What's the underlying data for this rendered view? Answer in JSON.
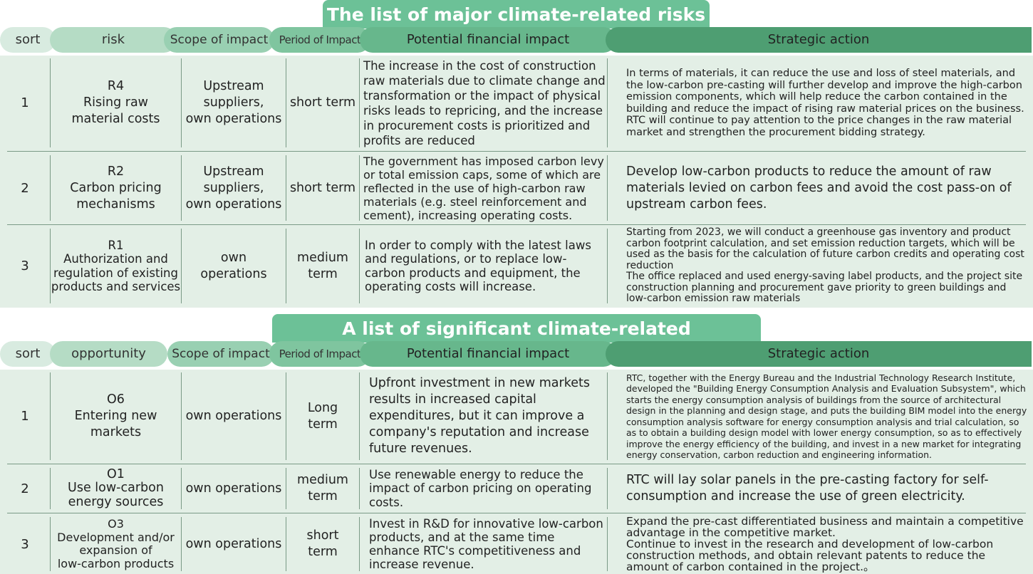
{
  "risks": {
    "title": "The list of major climate-related risks",
    "headers": {
      "sort": "sort",
      "item": "risk",
      "scope": "Scope of impact",
      "period": "Period of Impact",
      "financial": "Potential financial impact",
      "strategy": "Strategic action"
    },
    "rows": [
      {
        "sort": "1",
        "item": "R4\nRising raw\nmaterial costs",
        "scope": "Upstream\nsuppliers,\nown operations",
        "period": "short term",
        "financial": "The increase in the cost of construction raw materials due to climate change and transformation or the impact of physical risks leads to repricing, and the increase in procurement costs is prioritized and profits are reduced",
        "strategy": "In terms of materials, it can reduce the use and loss of steel materials, and the low-carbon pre-casting will further develop and improve the high-carbon emission components, which will help reduce the carbon contained in the building and reduce the impact of rising raw material prices on the business.\nRTC will continue to pay attention to the price changes in the raw material market and strengthen the procurement bidding strategy."
      },
      {
        "sort": "2",
        "item": "R2\nCarbon pricing\nmechanisms",
        "scope": "Upstream\nsuppliers,\nown operations",
        "period": "short term",
        "financial": "The government has imposed carbon levy or total emission caps, some of which are reflected in the use of high-carbon raw materials (e.g. steel reinforcement and cement), increasing operating costs.",
        "strategy": "Develop low-carbon products to reduce the amount of raw materials levied on carbon fees and avoid the cost pass-on of upstream carbon fees."
      },
      {
        "sort": "3",
        "item": "R1\nAuthorization and\nregulation of existing\nproducts and services",
        "scope": "own\noperations",
        "period": "medium\nterm",
        "financial": "In order to comply with the latest laws and regulations, or to replace low-carbon products and equipment, the operating costs will increase.",
        "strategy": "Starting from 2023, we will conduct a greenhouse gas inventory and product carbon footprint calculation, and set emission reduction targets, which will be used as the basis for the calculation of future carbon credits and operating cost reduction\nThe office replaced and used energy-saving label products, and the project site construction planning and procurement gave priority to green buildings and low-carbon emission raw materials"
      }
    ]
  },
  "opportunities": {
    "title": "A list of significant climate-related opportunities",
    "headers": {
      "sort": "sort",
      "item": "opportunity",
      "scope": "Scope of impact",
      "period": "Period of Impact",
      "financial": "Potential financial impact",
      "strategy": "Strategic action"
    },
    "rows": [
      {
        "sort": "1",
        "item": "O6\nEntering new\nmarkets",
        "scope": "own operations",
        "period": "Long\nterm",
        "financial": "Upfront investment in new markets results in increased capital expenditures, but it can improve a company's reputation and increase future revenues.",
        "strategy": "RTC, together with the Energy Bureau and the Industrial Technology Research Institute, developed the \"Building Energy Consumption Analysis and Evaluation Subsystem\", which starts the energy consumption analysis of buildings from the source of architectural design in the planning and design stage, and puts the building BIM model into the energy consumption analysis software for energy consumption analysis and trial calculation, so as to obtain a building design model with lower energy consumption, so as to effectively improve the energy efficiency of the building, and invest in a new market for integrating energy conservation, carbon reduction and engineering information."
      },
      {
        "sort": "2",
        "item": "O1\nUse low-carbon\nenergy sources",
        "scope": "own operations",
        "period": "medium\nterm",
        "financial": "Use renewable energy to reduce the impact of carbon pricing on operating costs.",
        "strategy": "RTC will lay solar panels in the pre-casting factory for self-consumption and increase the use of green electricity."
      },
      {
        "sort": "3",
        "item": "O3\nDevelopment and/or\nexpansion of\nlow-carbon products",
        "scope": "own operations",
        "period": "short\nterm",
        "financial": "Invest in R&D for innovative low-carbon products, and at the same time enhance RTC's competitiveness and increase revenue.",
        "strategy": "Expand the pre-cast differentiated business and maintain a competitive advantage in the competitive market.\nContinue to invest in the research and development of low-carbon construction methods, and obtain relevant patents to reduce the amount of carbon contained in the project.。"
      }
    ]
  },
  "colors": {
    "banner": "#6cc197",
    "body_background": "#e3efe6",
    "strategy_header": "#4e9e72"
  }
}
